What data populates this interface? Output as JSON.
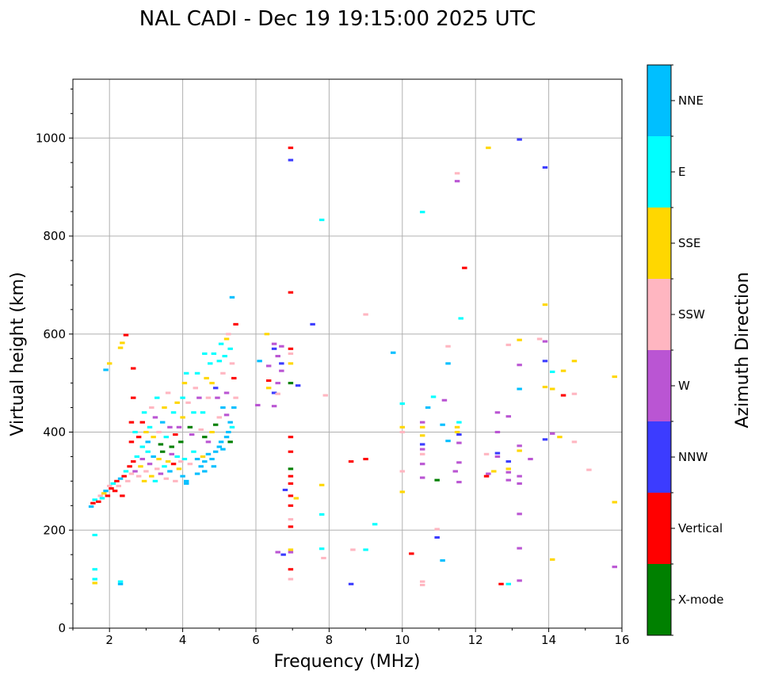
{
  "chart_data": {
    "type": "scatter",
    "title": "NAL CADI - Dec 19 19:15:00 2025 UTC",
    "xlabel": "Frequency (MHz)",
    "ylabel": "Virtual height (km)",
    "xlim": [
      1,
      16
    ],
    "ylim": [
      0,
      1120
    ],
    "xticks": [
      2,
      4,
      6,
      8,
      10,
      12,
      14,
      16
    ],
    "yticks": [
      0,
      200,
      400,
      600,
      800,
      1000
    ],
    "grid": true,
    "colorbar": {
      "label": "Azimuth Direction",
      "categories": [
        {
          "name": "X-mode",
          "color": "#008000"
        },
        {
          "name": "Vertical",
          "color": "#ff0000"
        },
        {
          "name": "NNW",
          "color": "#3c3cff"
        },
        {
          "name": "W",
          "color": "#ba55d3"
        },
        {
          "name": "SSW",
          "color": "#ffb6c1"
        },
        {
          "name": "SSE",
          "color": "#ffd700"
        },
        {
          "name": "E",
          "color": "#00ffff"
        },
        {
          "name": "NNE",
          "color": "#00bfff"
        }
      ]
    },
    "point_format": [
      "frequency_mhz",
      "height_km",
      "direction"
    ],
    "points": [
      [
        1.5,
        248,
        "NNE"
      ],
      [
        1.55,
        255,
        "Vertical"
      ],
      [
        1.6,
        262,
        "E"
      ],
      [
        1.7,
        258,
        "Vertical"
      ],
      [
        1.75,
        270,
        "SSW"
      ],
      [
        1.8,
        265,
        "E"
      ],
      [
        1.85,
        275,
        "SSE"
      ],
      [
        1.9,
        280,
        "NNE"
      ],
      [
        1.95,
        270,
        "Vertical"
      ],
      [
        2.0,
        290,
        "SSW"
      ],
      [
        2.05,
        285,
        "Vertical"
      ],
      [
        2.1,
        295,
        "E"
      ],
      [
        2.15,
        280,
        "Vertical"
      ],
      [
        2.2,
        300,
        "Vertical"
      ],
      [
        2.25,
        290,
        "SSW"
      ],
      [
        2.3,
        305,
        "NNE"
      ],
      [
        2.35,
        270,
        "Vertical"
      ],
      [
        2.4,
        310,
        "Vertical"
      ],
      [
        2.45,
        320,
        "E"
      ],
      [
        2.5,
        300,
        "SSW"
      ],
      [
        2.55,
        330,
        "Vertical"
      ],
      [
        2.6,
        315,
        "SSW"
      ],
      [
        2.65,
        340,
        "Vertical"
      ],
      [
        2.7,
        320,
        "W"
      ],
      [
        2.75,
        350,
        "E"
      ],
      [
        2.8,
        310,
        "SSW"
      ],
      [
        2.85,
        330,
        "SSE"
      ],
      [
        2.9,
        345,
        "W"
      ],
      [
        2.95,
        300,
        "SSE"
      ],
      [
        3.0,
        320,
        "SSW"
      ],
      [
        3.05,
        360,
        "E"
      ],
      [
        3.1,
        335,
        "W"
      ],
      [
        3.15,
        310,
        "SSE"
      ],
      [
        3.2,
        350,
        "NNE"
      ],
      [
        3.25,
        300,
        "E"
      ],
      [
        3.3,
        325,
        "SSW"
      ],
      [
        3.35,
        345,
        "SSE"
      ],
      [
        3.4,
        315,
        "W"
      ],
      [
        3.45,
        360,
        "X-mode"
      ],
      [
        3.5,
        330,
        "E"
      ],
      [
        3.55,
        305,
        "SSW"
      ],
      [
        3.6,
        340,
        "SSE"
      ],
      [
        3.65,
        320,
        "NNE"
      ],
      [
        3.7,
        355,
        "W"
      ],
      [
        3.75,
        335,
        "Vertical"
      ],
      [
        3.8,
        300,
        "SSW"
      ],
      [
        3.85,
        350,
        "E"
      ],
      [
        3.9,
        325,
        "SSE"
      ],
      [
        3.95,
        340,
        "SSW"
      ],
      [
        4.0,
        310,
        "NNE"
      ],
      [
        4.05,
        345,
        "E"
      ],
      [
        4.1,
        300,
        "NNE"
      ],
      [
        4.2,
        335,
        "SSW"
      ],
      [
        4.3,
        360,
        "E"
      ],
      [
        4.4,
        345,
        "NNE"
      ],
      [
        4.5,
        330,
        "NNE"
      ],
      [
        4.55,
        350,
        "SSE"
      ],
      [
        4.6,
        340,
        "NNE"
      ],
      [
        4.7,
        355,
        "NNE"
      ],
      [
        4.8,
        345,
        "NNE"
      ],
      [
        4.9,
        360,
        "NNE"
      ],
      [
        5.0,
        370,
        "NNE"
      ],
      [
        5.05,
        380,
        "NNE"
      ],
      [
        5.1,
        365,
        "NNE"
      ],
      [
        5.2,
        390,
        "NNE"
      ],
      [
        5.25,
        400,
        "NNE"
      ],
      [
        5.3,
        420,
        "NNE"
      ],
      [
        5.35,
        410,
        "E"
      ],
      [
        5.4,
        450,
        "NNE"
      ],
      [
        5.45,
        470,
        "SSW"
      ],
      [
        5.2,
        435,
        "W"
      ],
      [
        5.3,
        380,
        "X-mode"
      ],
      [
        4.85,
        330,
        "NNE"
      ],
      [
        4.6,
        320,
        "NNE"
      ],
      [
        4.4,
        315,
        "NNE"
      ],
      [
        4.1,
        295,
        "NNE"
      ],
      [
        2.6,
        380,
        "Vertical"
      ],
      [
        2.6,
        420,
        "Vertical"
      ],
      [
        2.65,
        470,
        "Vertical"
      ],
      [
        2.65,
        530,
        "Vertical"
      ],
      [
        2.7,
        400,
        "E"
      ],
      [
        2.8,
        390,
        "Vertical"
      ],
      [
        2.9,
        370,
        "E"
      ],
      [
        2.9,
        420,
        "Vertical"
      ],
      [
        2.95,
        440,
        "E"
      ],
      [
        3.0,
        400,
        "SSE"
      ],
      [
        3.05,
        380,
        "NNE"
      ],
      [
        3.1,
        410,
        "E"
      ],
      [
        3.15,
        450,
        "SSW"
      ],
      [
        3.2,
        390,
        "SSE"
      ],
      [
        3.25,
        430,
        "W"
      ],
      [
        3.3,
        470,
        "E"
      ],
      [
        3.35,
        400,
        "SSW"
      ],
      [
        3.4,
        375,
        "X-mode"
      ],
      [
        3.45,
        420,
        "NNE"
      ],
      [
        3.5,
        450,
        "SSE"
      ],
      [
        3.55,
        390,
        "E"
      ],
      [
        3.6,
        480,
        "SSW"
      ],
      [
        3.65,
        410,
        "W"
      ],
      [
        3.7,
        370,
        "X-mode"
      ],
      [
        3.75,
        440,
        "E"
      ],
      [
        3.8,
        395,
        "Vertical"
      ],
      [
        3.85,
        460,
        "SSE"
      ],
      [
        3.9,
        410,
        "W"
      ],
      [
        3.95,
        380,
        "X-mode"
      ],
      [
        4.0,
        430,
        "SSE"
      ],
      [
        4.0,
        470,
        "E"
      ],
      [
        4.05,
        500,
        "SSE"
      ],
      [
        4.1,
        520,
        "E"
      ],
      [
        4.15,
        460,
        "SSW"
      ],
      [
        4.2,
        410,
        "X-mode"
      ],
      [
        4.25,
        395,
        "W"
      ],
      [
        4.3,
        440,
        "E"
      ],
      [
        4.35,
        490,
        "SSW"
      ],
      [
        4.4,
        520,
        "E"
      ],
      [
        4.45,
        470,
        "W"
      ],
      [
        4.5,
        405,
        "SSW"
      ],
      [
        4.55,
        440,
        "E"
      ],
      [
        4.6,
        560,
        "E"
      ],
      [
        4.65,
        510,
        "SSE"
      ],
      [
        4.7,
        470,
        "SSW"
      ],
      [
        4.75,
        540,
        "E"
      ],
      [
        4.8,
        500,
        "SSE"
      ],
      [
        4.85,
        560,
        "E"
      ],
      [
        4.9,
        490,
        "NNW"
      ],
      [
        4.95,
        470,
        "W"
      ],
      [
        5.0,
        545,
        "E"
      ],
      [
        5.05,
        580,
        "E"
      ],
      [
        5.1,
        520,
        "SSW"
      ],
      [
        5.15,
        555,
        "E"
      ],
      [
        5.2,
        590,
        "SSE"
      ],
      [
        5.25,
        600,
        "SSW"
      ],
      [
        5.3,
        570,
        "E"
      ],
      [
        5.35,
        540,
        "SSW"
      ],
      [
        5.4,
        510,
        "Vertical"
      ],
      [
        5.45,
        620,
        "Vertical"
      ],
      [
        5.35,
        675,
        "NNE"
      ],
      [
        5.2,
        480,
        "W"
      ],
      [
        5.1,
        450,
        "NNE"
      ],
      [
        5.0,
        430,
        "SSW"
      ],
      [
        4.9,
        415,
        "X-mode"
      ],
      [
        4.8,
        400,
        "SSE"
      ],
      [
        4.7,
        380,
        "W"
      ],
      [
        4.6,
        390,
        "X-mode"
      ],
      [
        1.6,
        190,
        "E"
      ],
      [
        1.6,
        120,
        "E"
      ],
      [
        1.6,
        100,
        "E"
      ],
      [
        1.6,
        92,
        "SSE"
      ],
      [
        2.3,
        95,
        "E"
      ],
      [
        2.3,
        90,
        "NNE"
      ],
      [
        1.9,
        527,
        "NNE"
      ],
      [
        2.0,
        540,
        "SSE"
      ],
      [
        2.3,
        572,
        "SSE"
      ],
      [
        2.45,
        598,
        "Vertical"
      ],
      [
        2.35,
        582,
        "SSE"
      ],
      [
        6.95,
        980,
        "Vertical"
      ],
      [
        6.95,
        955,
        "NNW"
      ],
      [
        6.95,
        685,
        "Vertical"
      ],
      [
        7.8,
        833,
        "E"
      ],
      [
        7.55,
        620,
        "NNW"
      ],
      [
        6.3,
        600,
        "SSE"
      ],
      [
        6.5,
        580,
        "W"
      ],
      [
        6.5,
        570,
        "NNW"
      ],
      [
        6.7,
        575,
        "W"
      ],
      [
        6.95,
        570,
        "Vertical"
      ],
      [
        6.6,
        555,
        "W"
      ],
      [
        6.95,
        560,
        "SSW"
      ],
      [
        6.7,
        540,
        "NNW"
      ],
      [
        6.7,
        525,
        "W"
      ],
      [
        6.35,
        535,
        "W"
      ],
      [
        6.95,
        540,
        "SSE"
      ],
      [
        6.35,
        505,
        "Vertical"
      ],
      [
        6.6,
        500,
        "W"
      ],
      [
        6.35,
        490,
        "SSE"
      ],
      [
        6.5,
        480,
        "NNW"
      ],
      [
        6.6,
        478,
        "SSW"
      ],
      [
        6.95,
        500,
        "X-mode"
      ],
      [
        7.15,
        495,
        "NNW"
      ],
      [
        6.05,
        455,
        "W"
      ],
      [
        6.5,
        453,
        "W"
      ],
      [
        6.1,
        545,
        "NNE"
      ],
      [
        6.95,
        390,
        "Vertical"
      ],
      [
        6.95,
        360,
        "Vertical"
      ],
      [
        6.95,
        325,
        "X-mode"
      ],
      [
        6.95,
        310,
        "Vertical"
      ],
      [
        6.95,
        295,
        "Vertical"
      ],
      [
        6.8,
        282,
        "NNW"
      ],
      [
        6.95,
        270,
        "Vertical"
      ],
      [
        6.95,
        250,
        "Vertical"
      ],
      [
        6.95,
        222,
        "SSW"
      ],
      [
        6.95,
        207,
        "Vertical"
      ],
      [
        6.6,
        155,
        "W"
      ],
      [
        6.75,
        150,
        "NNW"
      ],
      [
        6.95,
        155,
        "W"
      ],
      [
        6.95,
        160,
        "SSE"
      ],
      [
        6.95,
        120,
        "Vertical"
      ],
      [
        6.95,
        100,
        "SSW"
      ],
      [
        7.1,
        265,
        "SSE"
      ],
      [
        7.8,
        292,
        "SSE"
      ],
      [
        7.8,
        232,
        "E"
      ],
      [
        7.8,
        162,
        "E"
      ],
      [
        7.85,
        143,
        "SSW"
      ],
      [
        7.9,
        475,
        "SSW"
      ],
      [
        8.6,
        340,
        "Vertical"
      ],
      [
        9.0,
        345,
        "Vertical"
      ],
      [
        8.65,
        160,
        "SSW"
      ],
      [
        9.0,
        160,
        "E"
      ],
      [
        8.6,
        90,
        "NNW"
      ],
      [
        9.25,
        212,
        "E"
      ],
      [
        9.0,
        640,
        "SSW"
      ],
      [
        9.75,
        562,
        "NNE"
      ],
      [
        10,
        458,
        "E"
      ],
      [
        10,
        410,
        "SSE"
      ],
      [
        10,
        400,
        "SSW"
      ],
      [
        10,
        320,
        "SSW"
      ],
      [
        10,
        278,
        "SSE"
      ],
      [
        10.25,
        152,
        "Vertical"
      ],
      [
        10.55,
        849,
        "E"
      ],
      [
        10.7,
        450,
        "NNE"
      ],
      [
        10.85,
        472,
        "E"
      ],
      [
        10.55,
        420,
        "W"
      ],
      [
        10.55,
        410,
        "SSE"
      ],
      [
        10.55,
        393,
        "SSE"
      ],
      [
        10.55,
        375,
        "NNW"
      ],
      [
        10.55,
        365,
        "W"
      ],
      [
        10.55,
        355,
        "SSW"
      ],
      [
        10.55,
        335,
        "W"
      ],
      [
        10.55,
        307,
        "W"
      ],
      [
        10.55,
        95,
        "SSW"
      ],
      [
        10.55,
        88,
        "SSW"
      ],
      [
        10.95,
        302,
        "X-mode"
      ],
      [
        10.95,
        202,
        "SSW"
      ],
      [
        10.95,
        185,
        "NNW"
      ],
      [
        11.1,
        415,
        "NNE"
      ],
      [
        11.15,
        465,
        "W"
      ],
      [
        11.1,
        138,
        "NNE"
      ],
      [
        11.25,
        575,
        "SSW"
      ],
      [
        11.25,
        540,
        "NNE"
      ],
      [
        11.25,
        382,
        "NNE"
      ],
      [
        11.5,
        928,
        "SSW"
      ],
      [
        11.5,
        912,
        "W"
      ],
      [
        11.6,
        632,
        "E"
      ],
      [
        11.5,
        410,
        "SSE"
      ],
      [
        11.55,
        420,
        "E"
      ],
      [
        11.5,
        400,
        "SSE"
      ],
      [
        11.55,
        395,
        "NNW"
      ],
      [
        11.55,
        378,
        "W"
      ],
      [
        11.55,
        338,
        "W"
      ],
      [
        11.45,
        320,
        "W"
      ],
      [
        11.55,
        298,
        "W"
      ],
      [
        11.7,
        735,
        "Vertical"
      ],
      [
        12.35,
        980,
        "SSE"
      ],
      [
        12.6,
        440,
        "W"
      ],
      [
        12.6,
        400,
        "W"
      ],
      [
        12.3,
        355,
        "SSW"
      ],
      [
        12.6,
        357,
        "NNW"
      ],
      [
        12.6,
        350,
        "W"
      ],
      [
        12.35,
        315,
        "W"
      ],
      [
        12.3,
        310,
        "Vertical"
      ],
      [
        12.5,
        320,
        "SSE"
      ],
      [
        12.9,
        578,
        "SSW"
      ],
      [
        12.9,
        432,
        "W"
      ],
      [
        12.9,
        340,
        "NNW"
      ],
      [
        12.9,
        325,
        "SSE"
      ],
      [
        12.9,
        318,
        "W"
      ],
      [
        12.9,
        302,
        "W"
      ],
      [
        12.7,
        90,
        "Vertical"
      ],
      [
        12.9,
        90,
        "E"
      ],
      [
        13.2,
        997,
        "NNW"
      ],
      [
        13.2,
        588,
        "SSE"
      ],
      [
        13.2,
        537,
        "W"
      ],
      [
        13.2,
        488,
        "NNE"
      ],
      [
        13.2,
        372,
        "W"
      ],
      [
        13.2,
        362,
        "SSE"
      ],
      [
        13.2,
        310,
        "W"
      ],
      [
        13.2,
        295,
        "W"
      ],
      [
        13.2,
        233,
        "W"
      ],
      [
        13.2,
        163,
        "W"
      ],
      [
        13.2,
        97,
        "W"
      ],
      [
        13.5,
        345,
        "W"
      ],
      [
        13.75,
        590,
        "SSW"
      ],
      [
        13.9,
        940,
        "NNW"
      ],
      [
        13.9,
        660,
        "SSE"
      ],
      [
        13.9,
        585,
        "W"
      ],
      [
        13.9,
        545,
        "NNW"
      ],
      [
        13.9,
        492,
        "SSE"
      ],
      [
        13.9,
        385,
        "NNW"
      ],
      [
        14.1,
        488,
        "SSE"
      ],
      [
        14.1,
        523,
        "E"
      ],
      [
        14.1,
        397,
        "W"
      ],
      [
        14.1,
        140,
        "SSE"
      ],
      [
        14.4,
        525,
        "SSE"
      ],
      [
        14.4,
        475,
        "Vertical"
      ],
      [
        14.3,
        390,
        "SSE"
      ],
      [
        14.7,
        545,
        "SSE"
      ],
      [
        14.7,
        478,
        "SSW"
      ],
      [
        14.7,
        380,
        "SSW"
      ],
      [
        15.1,
        323,
        "SSW"
      ],
      [
        15.8,
        513,
        "SSE"
      ],
      [
        15.8,
        257,
        "SSE"
      ],
      [
        15.8,
        125,
        "W"
      ]
    ]
  }
}
